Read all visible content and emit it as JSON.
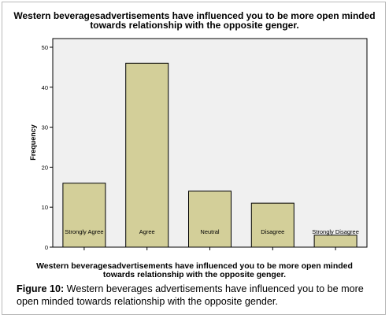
{
  "caption": {
    "prefix": "Figure 10:",
    "text": " Western beverages advertisements have influenced you to be more open minded towards relationship with the opposite gender."
  },
  "chart_data": {
    "type": "bar",
    "title": "Western beveragesadvertisements have influenced you to be more open minded\ntowards relationship with the opposite genger.",
    "xlabel": "Western beveragesadvertisements have influenced you to be more open minded\ntowards relationship with the opposite genger.",
    "ylabel": "Frequency",
    "categories": [
      "Strongly Agree",
      "Agree",
      "Neutral",
      "Disagree",
      "Strongly Disagree"
    ],
    "values": [
      16,
      46,
      14,
      11,
      3
    ],
    "ylim": [
      0,
      50
    ],
    "yticks": [
      0,
      10,
      20,
      30,
      40,
      50
    ],
    "bar_color": "#d3cf99",
    "plot_background": "#f0f0f0",
    "grid": false,
    "legend": "none"
  }
}
